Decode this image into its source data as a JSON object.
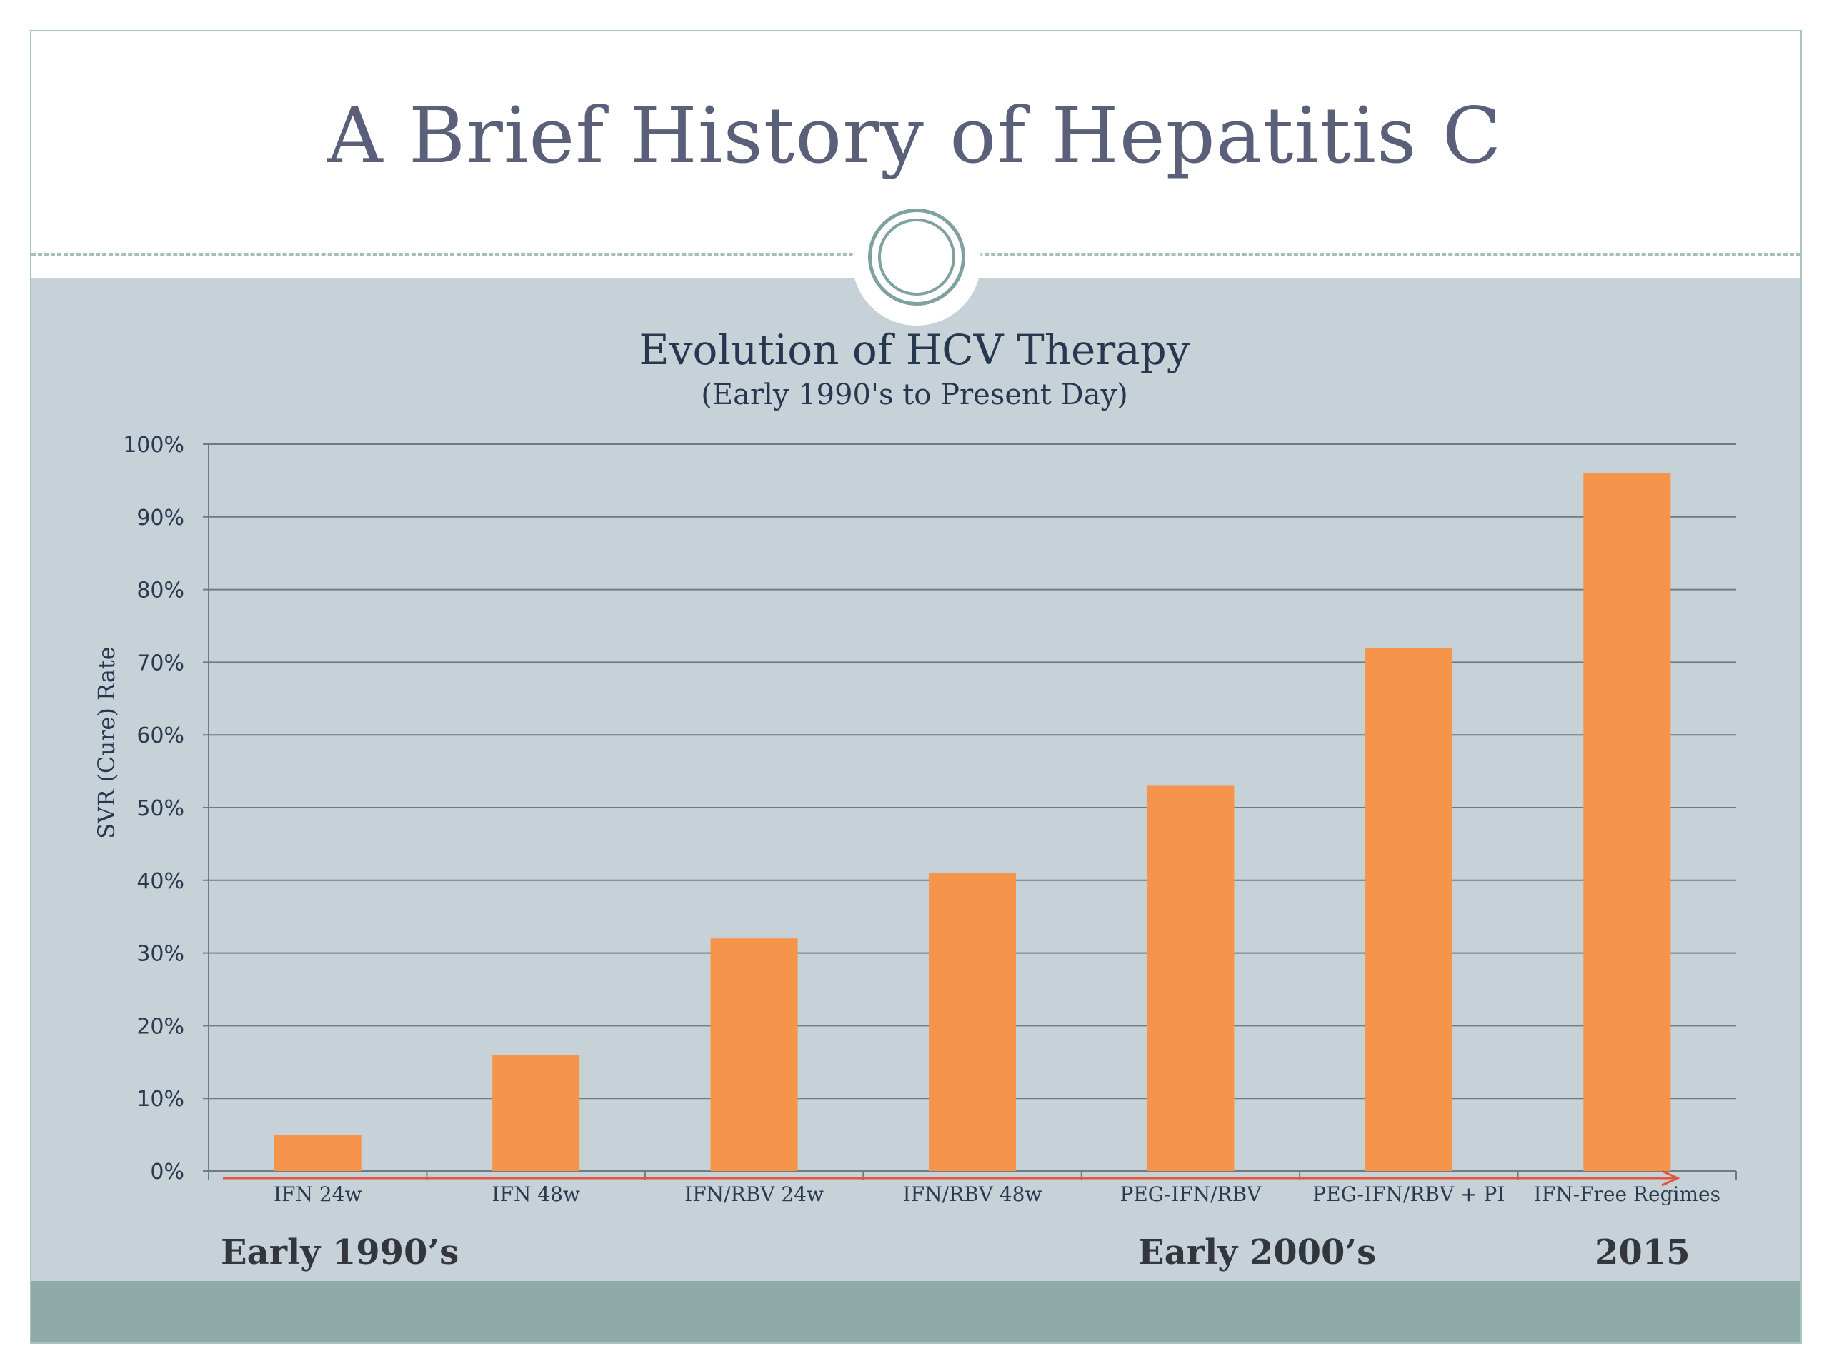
{
  "slide": {
    "title": "A Brief History of Hepatitis C"
  },
  "chart_data": {
    "type": "bar",
    "title": "Evolution of HCV Therapy",
    "subtitle": "(Early 1990's to Present Day)",
    "xlabel": "",
    "ylabel": "SVR (Cure) Rate",
    "ylim": [
      0,
      100
    ],
    "y_ticks": [
      "0%",
      "10%",
      "20%",
      "30%",
      "40%",
      "50%",
      "60%",
      "70%",
      "80%",
      "90%",
      "100%"
    ],
    "categories": [
      "IFN 24w",
      "IFN 48w",
      "IFN/RBV 24w",
      "IFN/RBV 48w",
      "PEG-IFN/RBV",
      "PEG-IFN/RBV + PI",
      "IFN-Free Regimes"
    ],
    "values": [
      5,
      16,
      32,
      41,
      53,
      72,
      96
    ],
    "grid": true,
    "legend": "none",
    "bar_color": "#f5944a",
    "timeline_arrow_color": "#e0573f",
    "era_labels": [
      "Early 1990’s",
      "Early 2000’s",
      "2015"
    ]
  },
  "colors": {
    "title": "#5a6079",
    "band": "#c6d2d8",
    "footer": "#8eaaa9",
    "grid": "#6f7b80"
  }
}
